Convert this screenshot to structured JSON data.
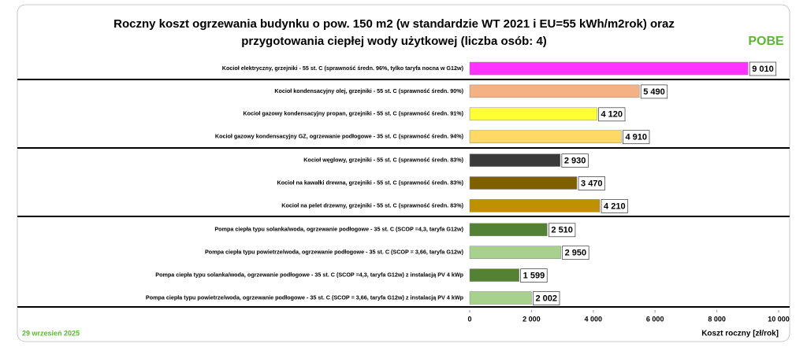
{
  "chart_data": {
    "type": "barh",
    "title": [
      "Roczny koszt ogrzewania budynku o pow. 150 m2 (w standardzie WT 2021 i EU=55 kWh/m2rok) oraz",
      "przygotowania ciepłej wody użytkowej (liczba osób: 4)"
    ],
    "logo": "POBE",
    "date": "29 wrzesień 2025",
    "x_label": "Koszt roczny [zł/rok]",
    "categories": [
      "Kocioł elektryczny,  grzejniki - 55 st. C  (sprawność średn. 96%, tylko taryfa nocna w G12w)",
      "Kocioł  kondensacyjny olej,  grzejniki - 55 st. C (sprawność średn. 90%)",
      "Kocioł gazowy kondensacyjny propan, grzejniki - 55 st. C (sprawność średn. 91%)",
      "Kocioł gazowy kondensacyjny GZ, ogrzewanie podłogowe - 35 st. C (sprawność średn. 94%)",
      "Kocioł węglowy,  grzejniki - 55 st. C (sprawność średn. 83%)",
      "Kocioł na kawałki drewna, grzejniki - 55 st. C (sprawność średn. 83%)",
      "Kocioł na pelet drzewny, grzejniki - 55 st. C (sprawność średn. 83%)",
      "Pompa ciepła typu solanka/woda, ogrzewanie podłogowe - 35 st. C (SCOP =4,3, taryfa G12w)",
      "Pompa ciepła typu powietrze/woda, ogrzewanie podłogowe - 35 st. C (SCOP = 3,66, taryfa G12w)",
      "Pompa ciepła typu solanka/woda, ogrzewanie podłogowe - 35 st. C (SCOP =4,3, taryfa G12w) z instalacją PV 4 kWp",
      "Pompa ciepła typu powietrze/woda, ogrzewanie podłogowe - 35 st. C (SCOP = 3,66, taryfa G12w) z instalacją PV 4 kWp"
    ],
    "values": [
      9010,
      5490,
      4120,
      4910,
      2930,
      3470,
      4210,
      2510,
      2950,
      1599,
      2002
    ],
    "value_labels": [
      "9 010",
      "5 490",
      "4 120",
      "4 910",
      "2 930",
      "3 470",
      "4 210",
      "2 510",
      "2 950",
      "1 599",
      "2 002"
    ],
    "colors": [
      "#ff33ff",
      "#f4b183",
      "#ffff33",
      "#ffd966",
      "#3a3a3a",
      "#7f6000",
      "#bf9000",
      "#548235",
      "#a9d18e",
      "#548235",
      "#a9d18e"
    ],
    "xlim": [
      0,
      10000
    ],
    "xticks": [
      0,
      {
        "value": 2000,
        "label": "2 000"
      },
      {
        "value": 4000,
        "label": "4 000"
      },
      {
        "value": 6000,
        "label": "6 000"
      },
      {
        "value": 8000,
        "label": "8 000"
      },
      {
        "value": 10000,
        "label": "10 000"
      }
    ]
  }
}
